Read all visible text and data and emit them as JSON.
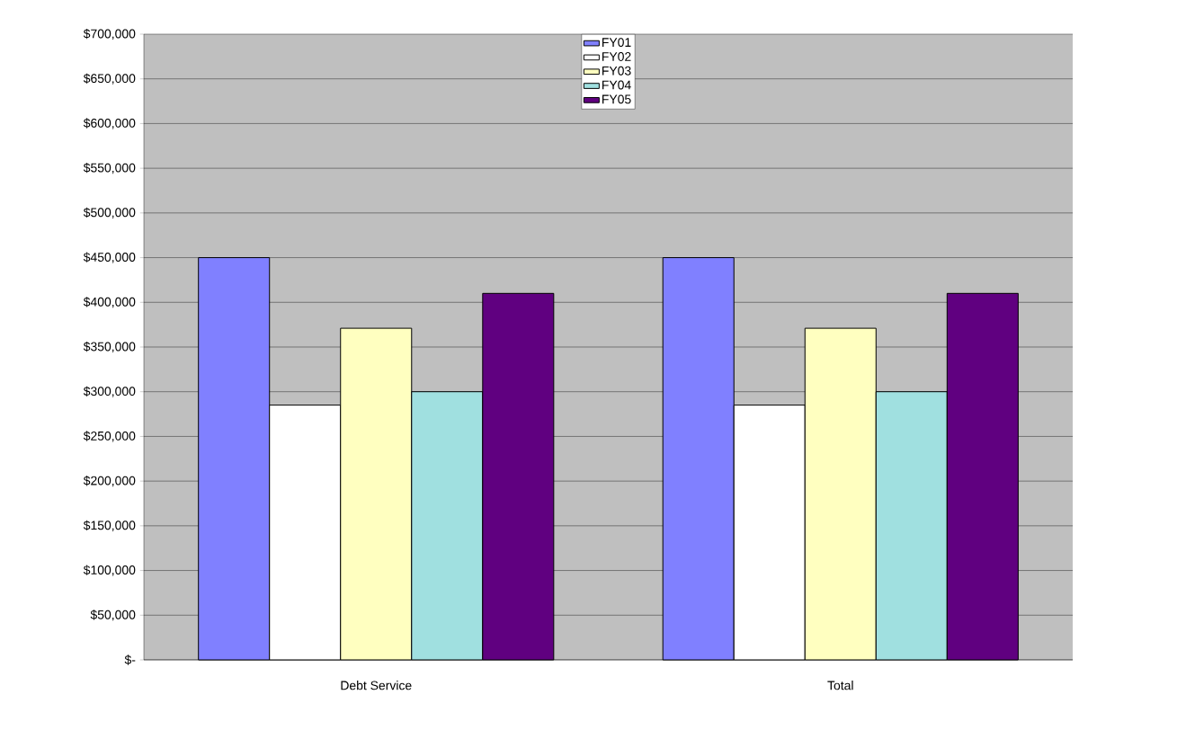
{
  "chart_data": {
    "type": "bar",
    "categories": [
      "Debt Service",
      "Total"
    ],
    "series": [
      {
        "name": "FY01",
        "color": "#8080ff",
        "values": [
          450000,
          450000
        ]
      },
      {
        "name": "FY02",
        "color": "#ffffff",
        "values": [
          285000,
          285000
        ]
      },
      {
        "name": "FY03",
        "color": "#ffffc0",
        "values": [
          371000,
          371000
        ]
      },
      {
        "name": "FY04",
        "color": "#a0e0e0",
        "values": [
          300000,
          300000
        ]
      },
      {
        "name": "FY05",
        "color": "#600080",
        "values": [
          410000,
          410000
        ]
      }
    ],
    "ylim": [
      0,
      700000
    ],
    "yticks": [
      {
        "value": 0,
        "label": "$-"
      },
      {
        "value": 50000,
        "label": "$50,000"
      },
      {
        "value": 100000,
        "label": "$100,000"
      },
      {
        "value": 150000,
        "label": "$150,000"
      },
      {
        "value": 200000,
        "label": "$200,000"
      },
      {
        "value": 250000,
        "label": "$250,000"
      },
      {
        "value": 300000,
        "label": "$300,000"
      },
      {
        "value": 350000,
        "label": "$350,000"
      },
      {
        "value": 400000,
        "label": "$400,000"
      },
      {
        "value": 450000,
        "label": "$450,000"
      },
      {
        "value": 500000,
        "label": "$500,000"
      },
      {
        "value": 550000,
        "label": "$550,000"
      },
      {
        "value": 600000,
        "label": "$600,000"
      },
      {
        "value": 650000,
        "label": "$650,000"
      },
      {
        "value": 700000,
        "label": "$700,000"
      }
    ],
    "grid": "y",
    "legend": "top"
  }
}
